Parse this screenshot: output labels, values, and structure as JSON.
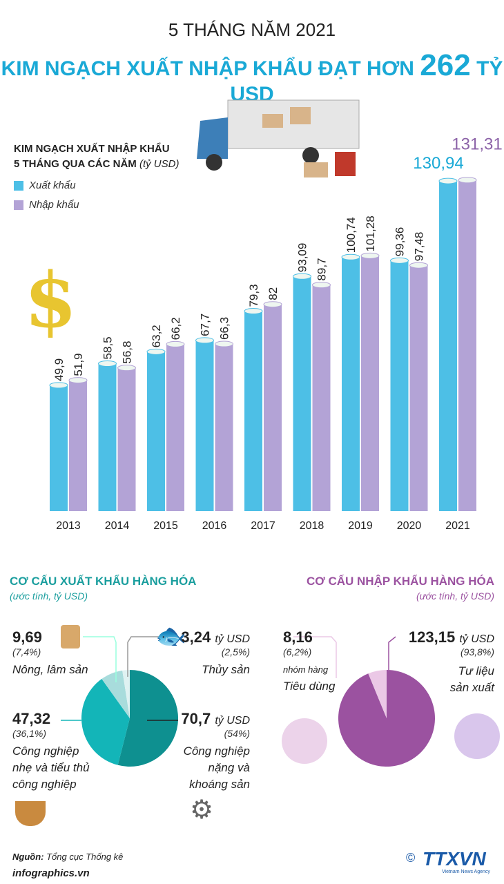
{
  "header": {
    "subtitle": "5 THÁNG NĂM 2021",
    "title_prefix": "KIM NGẠCH XUẤT NHẬP KHẨU ĐẠT HƠN",
    "title_number": "262",
    "title_suffix": "TỶ USD"
  },
  "chart_data": [
    {
      "type": "bar",
      "title_line1": "KIM NGẠCH XUẤT NHẬP KHẨU",
      "title_line2": "5 THÁNG QUA CÁC NĂM",
      "unit": "(tỷ USD)",
      "categories": [
        "2013",
        "2014",
        "2015",
        "2016",
        "2017",
        "2018",
        "2019",
        "2020",
        "2021"
      ],
      "series": [
        {
          "name": "Xuất khẩu",
          "color": "#4dbfe6",
          "values": [
            49.9,
            58.5,
            63.2,
            67.7,
            79.3,
            93.09,
            100.74,
            99.36,
            130.94
          ],
          "labels": [
            "49,9",
            "58,5",
            "63,2",
            "67,7",
            "79,3",
            "93,09",
            "100,74",
            "99,36",
            "130,94"
          ]
        },
        {
          "name": "Nhập khẩu",
          "color": "#b3a3d6",
          "values": [
            51.9,
            56.8,
            66.2,
            66.3,
            82,
            89.7,
            101.28,
            97.48,
            131.31
          ],
          "labels": [
            "51,9",
            "56,8",
            "66,2",
            "66,3",
            "82",
            "89,7",
            "101,28",
            "97,48",
            "131,31"
          ]
        }
      ],
      "legend": "top-left",
      "grid": false
    },
    {
      "type": "pie",
      "title": "CƠ CẤU XUẤT KHẨU HÀNG HÓA",
      "subtitle": "(ước tính, tỷ USD)",
      "color": "#1a9e9e",
      "slices": [
        {
          "label": "Công nghiệp nặng và khoáng sản",
          "value": 70.7,
          "value_text": "70,7",
          "unit": "tỷ USD",
          "pct": "(54%)",
          "color": "#0e9090"
        },
        {
          "label": "Công nghiệp nhẹ và tiểu thủ công nghiệp",
          "value": 47.32,
          "value_text": "47,32",
          "pct": "(36,1%)",
          "color": "#13b5b8"
        },
        {
          "label": "Nông, lâm sản",
          "value": 9.69,
          "value_text": "9,69",
          "pct": "(7,4%)",
          "color": "#a8dcdc"
        },
        {
          "label": "Thủy sản",
          "value": 3.24,
          "value_text": "3,24",
          "unit": "tỷ USD",
          "pct": "(2,5%)",
          "color": "#dff2f2"
        }
      ]
    },
    {
      "type": "pie",
      "title": "CƠ CẤU NHẬP KHẨU HÀNG HÓA",
      "subtitle": "(ước tính, tỷ USD)",
      "color": "#9b52a0",
      "slices": [
        {
          "label": "Tư liệu sản xuất",
          "value": 123.15,
          "value_text": "123,15",
          "unit": "tỷ USD",
          "pct": "(93,8%)",
          "color": "#9b52a0"
        },
        {
          "label_small": "nhóm hàng",
          "label": "Tiêu dùng",
          "value": 8.16,
          "value_text": "8,16",
          "pct": "(6,2%)",
          "color": "#ebc8e6"
        }
      ]
    }
  ],
  "footer": {
    "source_label": "Nguồn:",
    "source": "Tổng cục Thống kê",
    "site": "infographics.vn",
    "logo": "TTXVN",
    "logo_sub": "Vietnam News Agency",
    "copyright": "©"
  }
}
